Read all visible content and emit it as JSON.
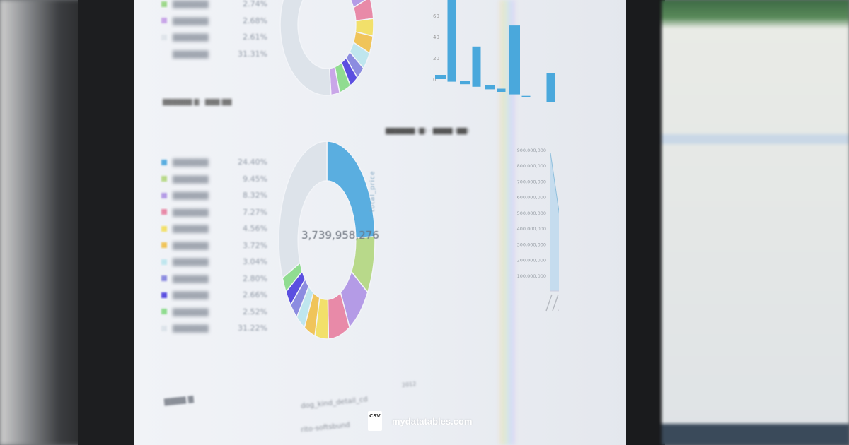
{
  "watermark": {
    "text": "mydatatables.com",
    "icon_label": "CSV"
  },
  "top_donut": {
    "legend": [
      {
        "pct": "2.74%",
        "color": "#9ed88c"
      },
      {
        "pct": "2.68%",
        "color": "#c9a6e8"
      },
      {
        "pct": "2.61%",
        "color": "#dfe4ea"
      },
      {
        "pct": "31.31%",
        "color": ""
      }
    ],
    "slices": [
      {
        "v": 8,
        "c": "#b8d98a"
      },
      {
        "v": 9,
        "c": "#b49be6"
      },
      {
        "v": 5,
        "c": "#e88aa8"
      },
      {
        "v": 4,
        "c": "#f2e06a"
      },
      {
        "v": 4,
        "c": "#f0c45a"
      },
      {
        "v": 4,
        "c": "#bfe6ee"
      },
      {
        "v": 3,
        "c": "#8c8ce0"
      },
      {
        "v": 3,
        "c": "#5b4fe0"
      },
      {
        "v": 4,
        "c": "#90dc90"
      },
      {
        "v": 3,
        "c": "#c9a6e8"
      },
      {
        "v": 53,
        "c": "#dde3ea"
      }
    ]
  },
  "main_donut": {
    "center_value": "3,739,958,276",
    "legend": [
      {
        "pct": "24.40%",
        "color": "#5aaee0"
      },
      {
        "pct": "9.45%",
        "color": "#b8d98a"
      },
      {
        "pct": "8.32%",
        "color": "#b49be6"
      },
      {
        "pct": "7.27%",
        "color": "#e88aa8"
      },
      {
        "pct": "4.56%",
        "color": "#f2e06a"
      },
      {
        "pct": "3.72%",
        "color": "#f0c45a"
      },
      {
        "pct": "3.04%",
        "color": "#bfe6ee"
      },
      {
        "pct": "2.80%",
        "color": "#8c8ce0"
      },
      {
        "pct": "2.66%",
        "color": "#5b4fe0"
      },
      {
        "pct": "2.52%",
        "color": "#90dc90"
      },
      {
        "pct": "31.22%",
        "color": "#dde3ea"
      }
    ]
  },
  "bottom": {
    "field_label": "dog_kind_detail_cd",
    "field_value": "rito-softsbund",
    "year": "2012"
  },
  "chart_data": [
    {
      "type": "bar",
      "ylim": [
        0,
        80
      ],
      "yticks": [
        "0",
        "20",
        "40",
        "60"
      ],
      "values": [
        4,
        82,
        3,
        38,
        4,
        3,
        65,
        1,
        0,
        27,
        90
      ],
      "color": "#4aa8dc"
    },
    {
      "type": "area",
      "ylabel": "total_price",
      "ylim": [
        0,
        900000000
      ],
      "yticks": [
        "100,000,000",
        "200,000,000",
        "300,000,000",
        "400,000,000",
        "500,000,000",
        "600,000,000",
        "700,000,000",
        "800,000,000",
        "900,000,000"
      ],
      "values": [
        880000000,
        620000000,
        360000000,
        340000000,
        320000000,
        290000000,
        250000000,
        180000000,
        160000000,
        135000000,
        130000000,
        128000000,
        125000000,
        124000000,
        122000000,
        120000000,
        118000000,
        118000000,
        116000000,
        115000000,
        115000000,
        114000000,
        113000000,
        112000000
      ],
      "color": "#a9d2ec"
    }
  ]
}
